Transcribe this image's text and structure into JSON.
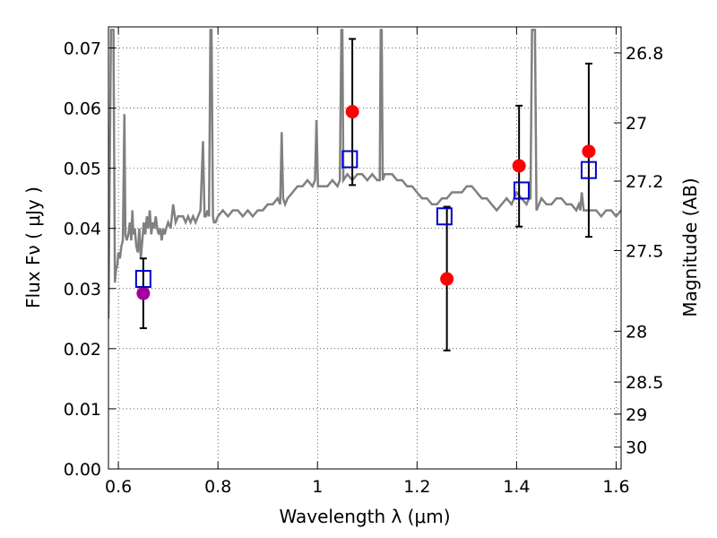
{
  "chart_data": {
    "type": "scatter",
    "title": "",
    "xlabel": "Wavelength  λ (μm)",
    "ylabel": "Flux  Fν  ( μJy )",
    "ylabel_right": "Magnitude (AB)",
    "xlim": [
      0.58,
      1.61
    ],
    "ylim": [
      0.0,
      0.0735
    ],
    "grid": true,
    "x_ticks": [
      0.6,
      0.8,
      1.0,
      1.2,
      1.4,
      1.6
    ],
    "x_tick_labels": [
      "0.6",
      "0.8",
      "1",
      "1.2",
      "1.4",
      "1.6"
    ],
    "y_ticks": [
      0.0,
      0.01,
      0.02,
      0.03,
      0.04,
      0.05,
      0.06,
      0.07
    ],
    "y_tick_labels": [
      "0.00",
      "0.01",
      "0.02",
      "0.03",
      "0.04",
      "0.05",
      "0.06",
      "0.07"
    ],
    "right_axis": {
      "labels": [
        "26.8",
        "27",
        "27.2",
        "27.5",
        "28",
        "28.5",
        "29",
        "30"
      ],
      "values": [
        26.8,
        27.0,
        27.2,
        27.5,
        28.0,
        28.5,
        29.0,
        30.0
      ]
    },
    "colors": {
      "spectrum": "#808080",
      "observed": "#ff0000",
      "observed_purple": "#a000a0",
      "model": "#0000cc",
      "errorbar": "#000000"
    },
    "series": [
      {
        "kind": "spectrum",
        "x": [
          0.58,
          0.585,
          0.588,
          0.59,
          0.593,
          0.595,
          0.598,
          0.6,
          0.603,
          0.606,
          0.609,
          0.612,
          0.614,
          0.617,
          0.62,
          0.623,
          0.626,
          0.628,
          0.63,
          0.633,
          0.636,
          0.639,
          0.642,
          0.645,
          0.648,
          0.651,
          0.654,
          0.657,
          0.66,
          0.663,
          0.666,
          0.669,
          0.672,
          0.675,
          0.678,
          0.681,
          0.684,
          0.687,
          0.69,
          0.693,
          0.696,
          0.7,
          0.705,
          0.71,
          0.715,
          0.72,
          0.725,
          0.73,
          0.735,
          0.74,
          0.745,
          0.75,
          0.755,
          0.76,
          0.765,
          0.77,
          0.773,
          0.776,
          0.779,
          0.782,
          0.785,
          0.787,
          0.79,
          0.792,
          0.795,
          0.8,
          0.81,
          0.82,
          0.83,
          0.84,
          0.85,
          0.86,
          0.87,
          0.88,
          0.89,
          0.9,
          0.91,
          0.92,
          0.925,
          0.928,
          0.931,
          0.935,
          0.94,
          0.95,
          0.96,
          0.97,
          0.98,
          0.99,
          0.995,
          0.998,
          1.001,
          1.005,
          1.01,
          1.02,
          1.03,
          1.04,
          1.045,
          1.048,
          1.05,
          1.052,
          1.06,
          1.07,
          1.08,
          1.09,
          1.1,
          1.11,
          1.12,
          1.125,
          1.127,
          1.129,
          1.131,
          1.135,
          1.14,
          1.15,
          1.16,
          1.17,
          1.18,
          1.19,
          1.2,
          1.21,
          1.22,
          1.23,
          1.24,
          1.25,
          1.26,
          1.27,
          1.28,
          1.29,
          1.3,
          1.31,
          1.32,
          1.33,
          1.34,
          1.35,
          1.36,
          1.37,
          1.38,
          1.39,
          1.4,
          1.41,
          1.42,
          1.425,
          1.428,
          1.431,
          1.434,
          1.437,
          1.44,
          1.445,
          1.45,
          1.46,
          1.47,
          1.48,
          1.49,
          1.5,
          1.51,
          1.52,
          1.525,
          1.528,
          1.531,
          1.535,
          1.54,
          1.55,
          1.56,
          1.57,
          1.58,
          1.59,
          1.6,
          1.61
        ],
        "y": [
          0.025,
          0.073,
          0.073,
          0.073,
          0.031,
          0.033,
          0.034,
          0.036,
          0.035,
          0.037,
          0.038,
          0.059,
          0.039,
          0.038,
          0.039,
          0.041,
          0.038,
          0.043,
          0.039,
          0.04,
          0.037,
          0.036,
          0.04,
          0.035,
          0.038,
          0.041,
          0.039,
          0.042,
          0.04,
          0.043,
          0.039,
          0.041,
          0.04,
          0.042,
          0.04,
          0.039,
          0.04,
          0.038,
          0.04,
          0.039,
          0.04,
          0.041,
          0.04,
          0.044,
          0.041,
          0.042,
          0.042,
          0.042,
          0.041,
          0.042,
          0.041,
          0.042,
          0.041,
          0.042,
          0.043,
          0.0545,
          0.042,
          0.042,
          0.043,
          0.042,
          0.073,
          0.073,
          0.042,
          0.041,
          0.041,
          0.042,
          0.043,
          0.042,
          0.043,
          0.043,
          0.042,
          0.043,
          0.042,
          0.043,
          0.043,
          0.044,
          0.044,
          0.045,
          0.044,
          0.056,
          0.045,
          0.044,
          0.045,
          0.046,
          0.047,
          0.047,
          0.048,
          0.047,
          0.048,
          0.058,
          0.047,
          0.047,
          0.047,
          0.047,
          0.048,
          0.047,
          0.048,
          0.073,
          0.073,
          0.048,
          0.049,
          0.048,
          0.049,
          0.049,
          0.048,
          0.049,
          0.048,
          0.048,
          0.073,
          0.073,
          0.048,
          0.049,
          0.049,
          0.049,
          0.048,
          0.048,
          0.047,
          0.047,
          0.046,
          0.045,
          0.045,
          0.044,
          0.044,
          0.045,
          0.045,
          0.046,
          0.046,
          0.046,
          0.047,
          0.047,
          0.046,
          0.045,
          0.045,
          0.044,
          0.043,
          0.044,
          0.045,
          0.044,
          0.046,
          0.045,
          0.044,
          0.045,
          0.045,
          0.073,
          0.073,
          0.073,
          0.043,
          0.044,
          0.045,
          0.044,
          0.044,
          0.045,
          0.045,
          0.044,
          0.044,
          0.043,
          0.044,
          0.043,
          0.046,
          0.043,
          0.043,
          0.043,
          0.043,
          0.042,
          0.043,
          0.043,
          0.042,
          0.043
        ]
      },
      {
        "kind": "observed",
        "x": [
          1.07,
          1.26,
          1.405,
          1.545
        ],
        "y": [
          0.0594,
          0.0316,
          0.0504,
          0.0528
        ]
      },
      {
        "kind": "observed_purple",
        "x": [
          0.65
        ],
        "y": [
          0.0292
        ]
      },
      {
        "kind": "model",
        "x": [
          0.65,
          1.065,
          1.255,
          1.41,
          1.545
        ],
        "y": [
          0.0316,
          0.0515,
          0.042,
          0.0463,
          0.0497
        ]
      },
      {
        "kind": "errorbar",
        "x": [
          0.65,
          1.07,
          1.26,
          1.405,
          1.545
        ],
        "y_low": [
          0.0234,
          0.0472,
          0.0197,
          0.0403,
          0.0386
        ],
        "y_high": [
          0.035,
          0.0715,
          0.0436,
          0.0604,
          0.0674
        ]
      }
    ]
  }
}
